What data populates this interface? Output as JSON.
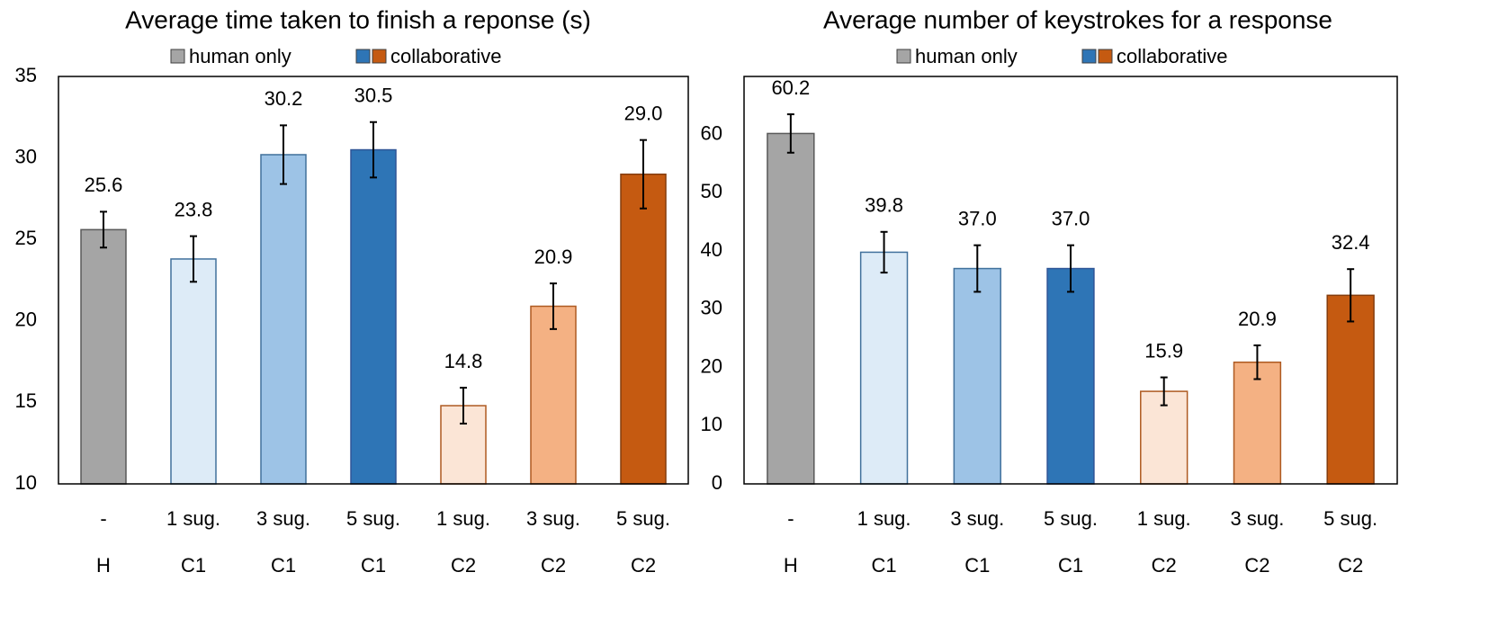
{
  "chart_data": [
    {
      "type": "bar",
      "title": "Average time taken to finish a reponse (s)",
      "legend": [
        {
          "name": "human only",
          "colors": [
            "#a5a5a5"
          ]
        },
        {
          "name": "collaborative",
          "colors": [
            "#2e75b6",
            "#c55a11"
          ]
        }
      ],
      "categories": [
        "-",
        "1 sug.",
        "3 sug.",
        "5 sug.",
        "1 sug.",
        "3 sug.",
        "5 sug."
      ],
      "groups": [
        "H",
        "C1",
        "C1",
        "C1",
        "C2",
        "C2",
        "C2"
      ],
      "values": [
        25.6,
        23.8,
        30.2,
        30.5,
        14.8,
        20.9,
        29.0
      ],
      "value_labels": [
        "25.6",
        "23.8",
        "30.2",
        "30.5",
        "14.8",
        "20.9",
        "29.0"
      ],
      "errors": [
        1.1,
        1.4,
        1.8,
        1.7,
        1.1,
        1.4,
        2.1
      ],
      "colors": [
        "#a5a5a5",
        "#ddebf7",
        "#9dc3e6",
        "#2e75b6",
        "#fbe5d6",
        "#f4b183",
        "#c55a11"
      ],
      "edgecolors": [
        "#595959",
        "#41719c",
        "#41719c",
        "#2f5597",
        "#ae5a21",
        "#ae5a21",
        "#843c0c"
      ],
      "ylim": [
        10,
        35
      ],
      "yticks": [
        10,
        15,
        20,
        25,
        30,
        35
      ]
    },
    {
      "type": "bar",
      "title": "Average number of keystrokes for a response",
      "legend": [
        {
          "name": "human only",
          "colors": [
            "#a5a5a5"
          ]
        },
        {
          "name": "collaborative",
          "colors": [
            "#2e75b6",
            "#c55a11"
          ]
        }
      ],
      "categories": [
        "-",
        "1 sug.",
        "3 sug.",
        "5 sug.",
        "1 sug.",
        "3 sug.",
        "5 sug."
      ],
      "groups": [
        "H",
        "C1",
        "C1",
        "C1",
        "C2",
        "C2",
        "C2"
      ],
      "values": [
        60.2,
        39.8,
        37.0,
        37.0,
        15.9,
        20.9,
        32.4
      ],
      "value_labels": [
        "60.2",
        "39.8",
        "37.0",
        "37.0",
        "15.9",
        "20.9",
        "32.4"
      ],
      "errors": [
        3.3,
        3.5,
        4.0,
        4.0,
        2.4,
        2.9,
        4.5
      ],
      "colors": [
        "#a5a5a5",
        "#ddebf7",
        "#9dc3e6",
        "#2e75b6",
        "#fbe5d6",
        "#f4b183",
        "#c55a11"
      ],
      "edgecolors": [
        "#595959",
        "#41719c",
        "#41719c",
        "#2f5597",
        "#ae5a21",
        "#ae5a21",
        "#843c0c"
      ],
      "ylim": [
        0,
        70
      ],
      "yticks": [
        0,
        10,
        20,
        30,
        40,
        50,
        60
      ]
    }
  ]
}
